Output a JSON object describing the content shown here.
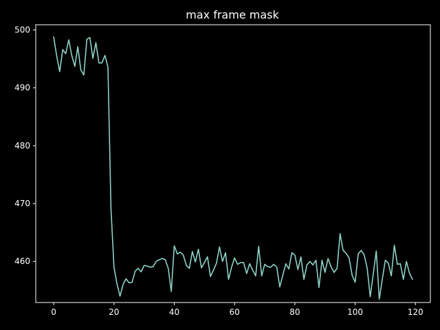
{
  "chart_data": {
    "type": "line",
    "title": "max frame mask",
    "xlabel": "",
    "ylabel": "",
    "xlim": [
      -5.95,
      124.95
    ],
    "ylim": [
      452.9,
      500.9
    ],
    "x_ticks": [
      0,
      20,
      40,
      60,
      80,
      100,
      120
    ],
    "y_ticks": [
      460,
      470,
      480,
      490,
      500
    ],
    "grid": false,
    "legend": "none",
    "line_color": "#8dd3c7",
    "background_color": "#000000",
    "series": [
      {
        "values": [
          498.8,
          495.5,
          492.8,
          496.6,
          495.9,
          498.3,
          495.6,
          493.7,
          497.1,
          493.1,
          492.2,
          498.4,
          498.7,
          495.1,
          497.8,
          494.3,
          494.3,
          495.6,
          493.6,
          469.2,
          459.0,
          456.1,
          454.0,
          456.0,
          457.0,
          456.3,
          456.4,
          458.3,
          458.8,
          458.2,
          459.3,
          459.2,
          459.0,
          459.1,
          460.0,
          460.3,
          460.5,
          460.3,
          458.8,
          454.8,
          462.7,
          461.3,
          461.6,
          461.1,
          459.3,
          458.8,
          461.7,
          459.9,
          462.1,
          458.9,
          459.8,
          460.8,
          457.4,
          458.5,
          459.7,
          462.5,
          460.0,
          461.5,
          456.9,
          459.0,
          460.6,
          459.5,
          459.8,
          459.8,
          457.9,
          459.6,
          458.5,
          457.5,
          462.6,
          457.5,
          459.5,
          459.1,
          459.0,
          459.5,
          459.0,
          455.6,
          457.6,
          459.6,
          458.7,
          461.5,
          461.1,
          458.6,
          460.8,
          456.9,
          459.4,
          460.0,
          459.4,
          460.2,
          455.5,
          460.2,
          458.1,
          460.5,
          459.1,
          458.1,
          458.8,
          464.8,
          461.9,
          461.4,
          460.6,
          457.6,
          456.4,
          461.3,
          461.9,
          461.1,
          458.8,
          453.9,
          457.8,
          461.8,
          453.5,
          456.9,
          460.2,
          459.7,
          457.5,
          462.8,
          459.5,
          459.6,
          456.9,
          460.0,
          458.0,
          456.9
        ]
      }
    ]
  }
}
